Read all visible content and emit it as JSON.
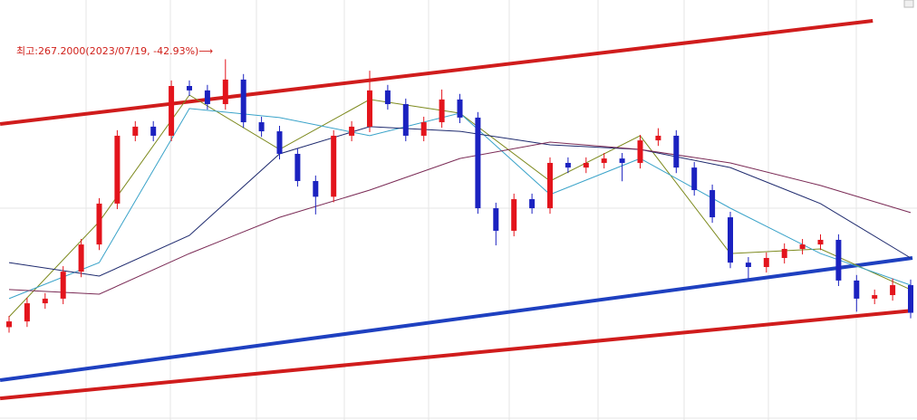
{
  "chart_data": {
    "type": "candlestick",
    "annotation": "최고:267.2000(2023/07/19, -42.93%)⟶",
    "ylim": [
      104,
      294
    ],
    "up_color": "#e3141c",
    "down_color": "#1b22c0",
    "open": [
      146.0,
      148.6,
      156.8,
      158.9,
      171.1,
      183.4,
      201.9,
      232.6,
      236.7,
      232.6,
      255.1,
      253.1,
      246.9,
      258.0,
      238.7,
      234.6,
      224.4,
      212.1,
      205.0,
      232.6,
      236.7,
      253.1,
      246.9,
      232.6,
      238.7,
      249.0,
      240.8,
      199.8,
      189.6,
      203.9,
      199.8,
      220.3,
      218.2,
      220.3,
      222.3,
      220.3,
      230.5,
      232.6,
      218.2,
      208.0,
      195.7,
      175.2,
      173.2,
      177.3,
      181.4,
      183.4,
      185.5,
      167.1,
      158.9,
      160.5,
      165.0
    ],
    "high": [
      151.1,
      159.3,
      161.4,
      173.6,
      185.9,
      204.4,
      235.1,
      239.2,
      239.2,
      257.6,
      257.6,
      255.6,
      267.2,
      260.5,
      241.2,
      237.1,
      226.9,
      214.6,
      235.1,
      239.2,
      262.0,
      255.6,
      249.4,
      241.2,
      253.5,
      251.5,
      243.3,
      202.3,
      206.4,
      206.4,
      222.8,
      222.8,
      222.8,
      224.8,
      224.8,
      233.0,
      236.0,
      235.1,
      220.7,
      210.5,
      198.2,
      177.7,
      179.8,
      183.9,
      185.9,
      188.0,
      188.0,
      169.6,
      163.0,
      168.0,
      167.5
    ],
    "low": [
      143.5,
      146.1,
      154.3,
      156.4,
      168.6,
      180.9,
      199.4,
      230.1,
      230.1,
      230.1,
      250.6,
      244.4,
      244.4,
      236.2,
      232.1,
      221.9,
      209.6,
      197.0,
      202.5,
      230.1,
      234.2,
      244.4,
      230.1,
      230.1,
      236.2,
      238.3,
      197.3,
      183.0,
      187.1,
      197.3,
      197.3,
      215.7,
      215.7,
      217.8,
      212.0,
      217.8,
      228.0,
      215.7,
      205.5,
      193.2,
      172.7,
      168.0,
      170.7,
      174.8,
      178.9,
      180.9,
      164.6,
      153.0,
      156.4,
      158.0,
      150.0
    ],
    "close": [
      148.6,
      156.8,
      158.9,
      171.1,
      183.4,
      201.9,
      232.6,
      236.7,
      232.6,
      255.1,
      253.1,
      246.9,
      258.0,
      238.7,
      234.6,
      224.4,
      212.1,
      205.0,
      232.6,
      236.7,
      253.1,
      246.9,
      232.6,
      238.7,
      249.0,
      240.8,
      199.8,
      189.6,
      203.9,
      199.8,
      220.3,
      218.2,
      220.3,
      222.3,
      220.3,
      230.5,
      232.6,
      218.2,
      208.0,
      195.7,
      175.2,
      173.2,
      177.3,
      181.4,
      183.4,
      185.5,
      167.1,
      158.9,
      160.5,
      165.0,
      152.5
    ],
    "lines": [
      {
        "color": "#7d8a1e",
        "x": [
          0,
          5,
          10,
          15,
          20,
          25,
          30,
          35,
          40,
          45,
          50
        ],
        "values": [
          150.7,
          193.7,
          251.0,
          226.4,
          249.0,
          242.8,
          212.1,
          232.6,
          179.3,
          181.4,
          163.0
        ]
      },
      {
        "color": "#3aa3c9",
        "x": [
          0,
          5,
          10,
          15,
          20,
          25,
          30,
          35,
          40,
          45,
          50
        ],
        "values": [
          158.9,
          175.2,
          244.9,
          240.8,
          232.6,
          242.8,
          206.0,
          222.3,
          199.8,
          179.3,
          165.0
        ]
      },
      {
        "color": "#1e2a6e",
        "x": [
          0,
          5,
          10,
          15,
          20,
          25,
          30,
          35,
          40,
          45,
          50
        ],
        "values": [
          175.2,
          169.1,
          187.5,
          224.4,
          236.7,
          234.6,
          228.5,
          226.4,
          218.2,
          201.9,
          177.3
        ]
      },
      {
        "color": "#7a2a55",
        "x": [
          0,
          5,
          10,
          15,
          20,
          25,
          30,
          35,
          40,
          45,
          50
        ],
        "values": [
          163.0,
          160.9,
          179.3,
          195.7,
          208.0,
          222.3,
          229.7,
          226.4,
          220.3,
          210.1,
          197.8
        ]
      }
    ],
    "trendlines": [
      {
        "color": "#d01c1c",
        "x": [
          -0.5,
          47.9
        ],
        "values": [
          237.9,
          284.6
        ]
      },
      {
        "color": "#1e40c0",
        "x": [
          -0.5,
          50.1
        ],
        "values": [
          122.0,
          177.3
        ]
      },
      {
        "color": "#d01c1c",
        "x": [
          -0.5,
          50.1
        ],
        "values": [
          113.8,
          153.5
        ]
      }
    ]
  }
}
